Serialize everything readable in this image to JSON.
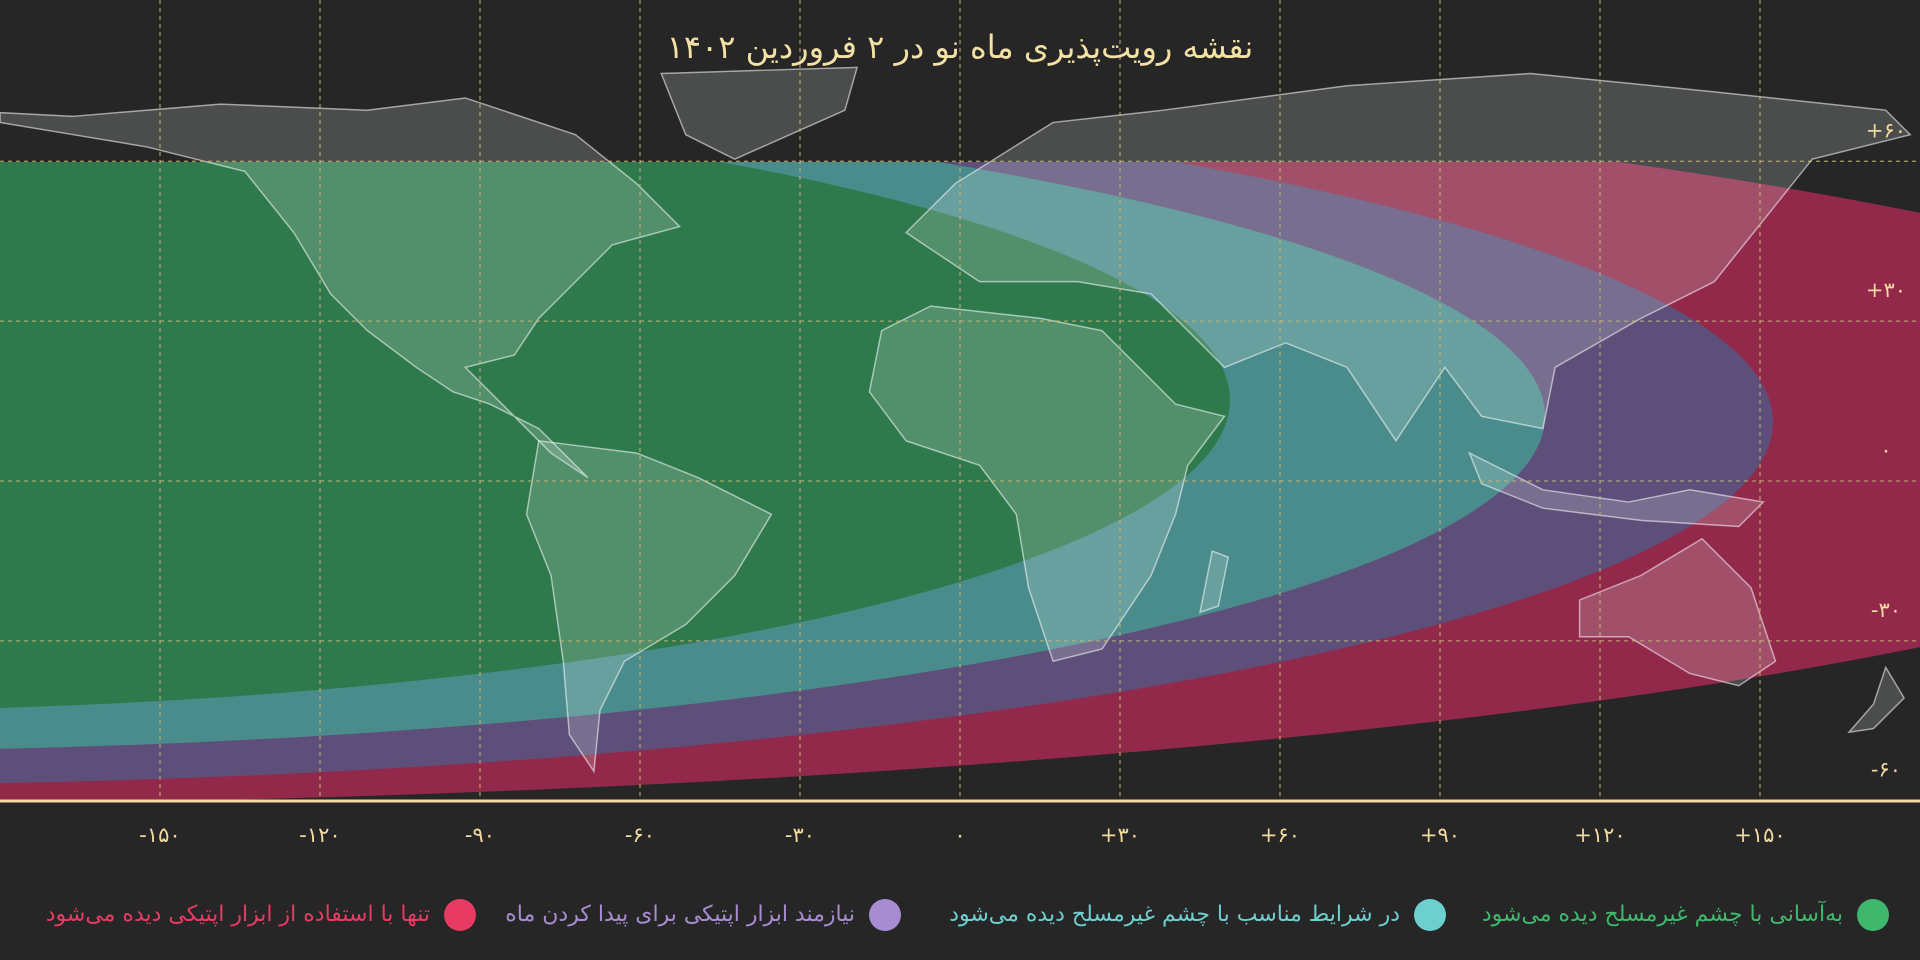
{
  "title": "نقشه رویت‌پذیری ماه نو در ۲ فروردین ۱۴۰۲",
  "map": {
    "longitude_ticks": [
      {
        "value": -150,
        "label": "-۱۵۰"
      },
      {
        "value": -120,
        "label": "-۱۲۰"
      },
      {
        "value": -90,
        "label": "-۹۰"
      },
      {
        "value": -60,
        "label": "-۶۰"
      },
      {
        "value": -30,
        "label": "-۳۰"
      },
      {
        "value": 0,
        "label": "۰"
      },
      {
        "value": 30,
        "label": "+۳۰"
      },
      {
        "value": 60,
        "label": "+۶۰"
      },
      {
        "value": 90,
        "label": "+۹۰"
      },
      {
        "value": 120,
        "label": "+۱۲۰"
      },
      {
        "value": 150,
        "label": "+۱۵۰"
      }
    ],
    "latitude_ticks": [
      {
        "value": 60,
        "label": "+۶۰"
      },
      {
        "value": 30,
        "label": "+۳۰"
      },
      {
        "value": 0,
        "label": "۰"
      },
      {
        "value": -30,
        "label": "-۳۰"
      },
      {
        "value": -60,
        "label": "-۶۰"
      }
    ]
  },
  "legend": [
    {
      "label": "به‌آسانی با چشم غیرمسلح دیده می‌شود",
      "color": "#3fb86d"
    },
    {
      "label": "در شرایط مناسب با چشم غیرمسلح دیده می‌شود",
      "color": "#6ecfcf"
    },
    {
      "label": "نیازمند ابزار اپتیکی برای پیدا کردن ماه",
      "color": "#a88cd2"
    },
    {
      "label": "تنها با استفاده از ابزار اپتیکی دیده می‌شود",
      "color": "#e83a62"
    }
  ]
}
